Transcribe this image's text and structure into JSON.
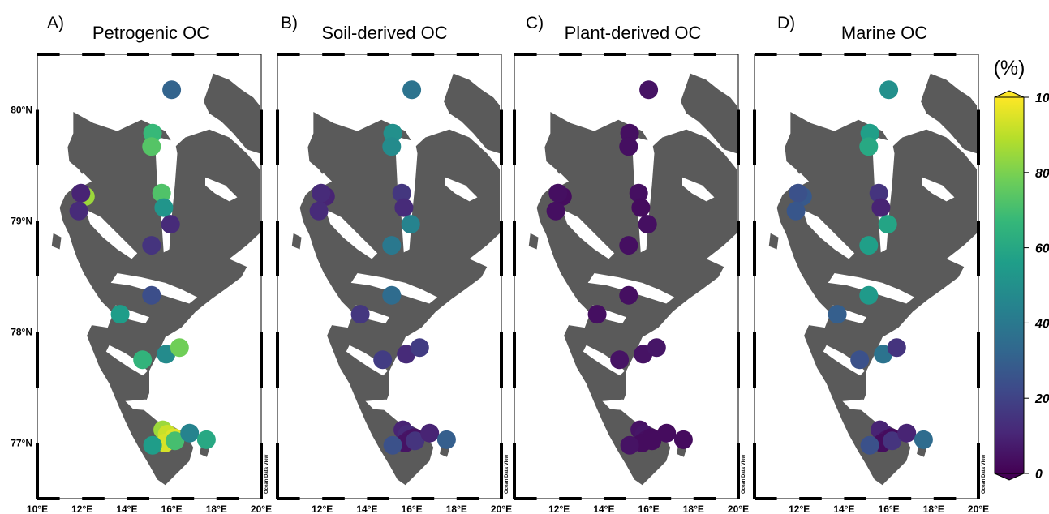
{
  "panels": [
    {
      "letter": "A)",
      "title": "Petrogenic OC",
      "colorbar_values": [
        32,
        85,
        10,
        12,
        67,
        73,
        72,
        52,
        12,
        15,
        24,
        55,
        65,
        48,
        78,
        85,
        92,
        92,
        95,
        94,
        55,
        70,
        45,
        60
      ]
    },
    {
      "letter": "B)",
      "title": "Soil-derived OC",
      "colorbar_values": [
        38,
        10,
        12,
        12,
        50,
        48,
        16,
        12,
        45,
        40,
        35,
        16,
        18,
        12,
        18,
        10,
        12,
        6,
        5,
        5,
        25,
        15,
        10,
        30
      ]
    },
    {
      "letter": "C)",
      "title": "Plant-derived OC",
      "colorbar_values": [
        5,
        3,
        4,
        4,
        4,
        4,
        4,
        3,
        4,
        4,
        4,
        4,
        5,
        5,
        6,
        5,
        6,
        4,
        3,
        3,
        5,
        3,
        3,
        3
      ]
    },
    {
      "letter": "D)",
      "title": "Marine OC",
      "colorbar_values": [
        50,
        28,
        25,
        27,
        56,
        60,
        15,
        10,
        58,
        56,
        54,
        30,
        25,
        38,
        15,
        10,
        10,
        5,
        3,
        3,
        25,
        15,
        10,
        35
      ]
    }
  ],
  "stations": [
    {
      "lon": 16.0,
      "lat": 80.18
    },
    {
      "lon": 12.15,
      "lat": 79.22
    },
    {
      "lon": 11.95,
      "lat": 79.25
    },
    {
      "lon": 11.85,
      "lat": 79.09
    },
    {
      "lon": 15.15,
      "lat": 79.79
    },
    {
      "lon": 15.1,
      "lat": 79.67
    },
    {
      "lon": 15.55,
      "lat": 79.25
    },
    {
      "lon": 15.65,
      "lat": 79.12
    },
    {
      "lon": 15.95,
      "lat": 78.97
    },
    {
      "lon": 15.1,
      "lat": 78.78
    },
    {
      "lon": 15.1,
      "lat": 78.33
    },
    {
      "lon": 13.7,
      "lat": 78.16
    },
    {
      "lon": 14.7,
      "lat": 77.75
    },
    {
      "lon": 15.75,
      "lat": 77.8
    },
    {
      "lon": 16.35,
      "lat": 77.86
    },
    {
      "lon": 15.6,
      "lat": 77.12
    },
    {
      "lon": 15.8,
      "lat": 77.08
    },
    {
      "lon": 15.9,
      "lat": 77.03
    },
    {
      "lon": 16.1,
      "lat": 77.05
    },
    {
      "lon": 15.7,
      "lat": 77.0
    },
    {
      "lon": 15.15,
      "lat": 76.98
    },
    {
      "lon": 16.15,
      "lat": 77.02
    },
    {
      "lon": 16.8,
      "lat": 77.09
    },
    {
      "lon": 17.55,
      "lat": 77.03
    }
  ],
  "axes": {
    "lon_ticks": [
      "10°E",
      "12°E",
      "14°E",
      "16°E",
      "18°E",
      "20°E"
    ],
    "lat_ticks": [
      "80°N",
      "79°N",
      "78°N",
      "77°N"
    ],
    "lon_range": [
      10,
      20
    ],
    "lat_range": [
      76.5,
      80.5
    ]
  },
  "watermark": "Ocean Data View",
  "colorbar": {
    "label": "(%)",
    "min": 0,
    "max": 100,
    "tick_labels": [
      "100",
      "80",
      "60",
      "40",
      "20",
      "0"
    ],
    "colormap": [
      "#440154",
      "#482878",
      "#3e4989",
      "#31688e",
      "#26828e",
      "#1f9e89",
      "#35b779",
      "#6ece58",
      "#b5de2b",
      "#fde725"
    ]
  }
}
